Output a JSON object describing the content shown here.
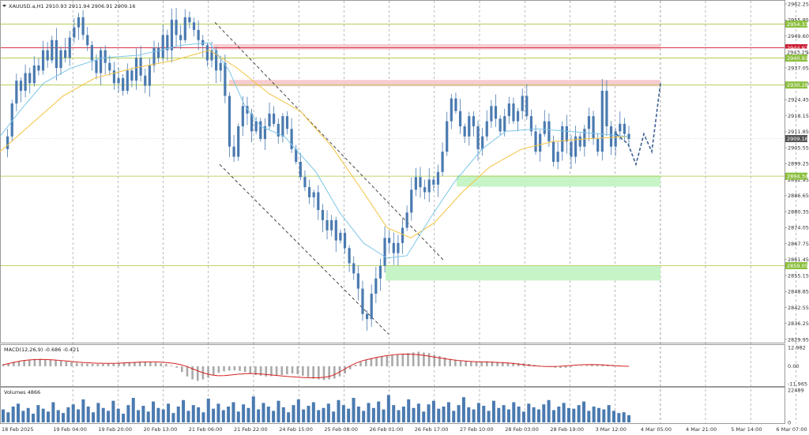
{
  "header": {
    "symbol_line": "XAUUSD.a,H1  2910.93 2911.94 2906.91 2909.16"
  },
  "colors": {
    "candle": "#4a7ab0",
    "ma_fast": "#7cc6e8",
    "ma_slow": "#f3c23f",
    "green_line": "#a8c93b",
    "red_line": "#d9344a",
    "resistance_zone": "#f7c9cf",
    "support_zone": "#c4f3c4",
    "macd_hist": "#a9a9a9",
    "macd_signal": "#d62020",
    "volume_bar": "#4a7ab0",
    "badge_green": "#8cbf3f",
    "badge_red": "#cc1d34",
    "badge_gray": "#555555"
  },
  "chart_data": {
    "type": "candlestick",
    "symbol": "XAUUSD.a",
    "timeframe": "H1",
    "ohlc_current": {
      "open": 2910.93,
      "high": 2911.94,
      "low": 2906.91,
      "close": 2909.16
    },
    "price_axis": {
      "range": [
        2829.95,
        2962.25
      ],
      "ticks": [
        "2962.25",
        "2955.95",
        "2949.60",
        "2943.25",
        "2937.05",
        "2930.70",
        "2924.45",
        "2918.15",
        "2911.85",
        "2905.55",
        "2899.25",
        "2892.95",
        "2886.65",
        "2880.35",
        "2874.05",
        "2867.75",
        "2861.45",
        "2855.15",
        "2848.85",
        "2842.55",
        "2836.25",
        "2829.95"
      ]
    },
    "time_axis": {
      "ticks": [
        "18 Feb 2025",
        "19 Feb 04:00",
        "19 Feb 20:00",
        "20 Feb 13:00",
        "21 Feb 06:00",
        "21 Feb 22:00",
        "24 Feb 15:00",
        "25 Feb 08:00",
        "26 Feb 01:00",
        "26 Feb 17:00",
        "27 Feb 10:00",
        "28 Feb 03:00",
        "28 Feb 19:00",
        "3 Mar 12:00",
        "4 Mar 05:00",
        "4 Mar 21:00",
        "5 Mar 14:00",
        "6 Mar 07:00",
        "6 Mar 23:00",
        "7 Mar 16:00"
      ]
    },
    "levels": [
      {
        "price": 2954.33,
        "label": "2954.33",
        "kind": "green"
      },
      {
        "price": 2944.97,
        "label": "2944.97",
        "kind": "red"
      },
      {
        "price": 2943.25,
        "label": "2943.25",
        "kind": "gray"
      },
      {
        "price": 2940.91,
        "label": "2940.91",
        "kind": "green"
      },
      {
        "price": 2930.28,
        "label": "2930.28",
        "kind": "green"
      },
      {
        "price": 2909.16,
        "label": "2909.16",
        "kind": "current"
      },
      {
        "price": 2894.34,
        "label": "2894.34",
        "kind": "green"
      },
      {
        "price": 2859.05,
        "label": "2859.05",
        "kind": "green"
      }
    ],
    "zones": [
      {
        "from": 2944.3,
        "to": 2946.4,
        "kind": "resistance"
      },
      {
        "from": 2929.8,
        "to": 2932.3,
        "kind": "resistance"
      },
      {
        "from": 2890.2,
        "to": 2894.6,
        "kind": "support"
      },
      {
        "from": 2853.2,
        "to": 2859.0,
        "kind": "support"
      }
    ],
    "candle_path": [
      2905,
      2910,
      2923,
      2932,
      2928,
      2935,
      2931,
      2938,
      2936,
      2944,
      2940,
      2948,
      2937,
      2944,
      2941,
      2949,
      2953,
      2957,
      2950,
      2946,
      2940,
      2935,
      2944,
      2939,
      2936,
      2931,
      2933,
      2928,
      2936,
      2932,
      2941,
      2934,
      2930,
      2938,
      2945,
      2941,
      2950,
      2944,
      2956,
      2950,
      2948,
      2957,
      2955,
      2952,
      2948,
      2946,
      2940,
      2944,
      2936,
      2939,
      2926,
      2906,
      2902,
      2914,
      2922,
      2919,
      2912,
      2916,
      2909,
      2914,
      2919,
      2915,
      2910,
      2918,
      2913,
      2905,
      2900,
      2894,
      2890,
      2886,
      2888,
      2881,
      2877,
      2873,
      2877,
      2869,
      2872,
      2866,
      2860,
      2856,
      2850,
      2840,
      2838,
      2848,
      2854,
      2859,
      2870,
      2868,
      2864,
      2868,
      2874,
      2880,
      2889,
      2894,
      2890,
      2888,
      2893,
      2891,
      2896,
      2904,
      2916,
      2925,
      2920,
      2914,
      2910,
      2918,
      2914,
      2905,
      2910,
      2916,
      2922,
      2917,
      2912,
      2918,
      2923,
      2916,
      2920,
      2926,
      2918,
      2912,
      2904,
      2911,
      2916,
      2908,
      2900,
      2904,
      2914,
      2908,
      2902,
      2910,
      2906,
      2913,
      2918,
      2909,
      2904,
      2928,
      2914,
      2906,
      2912,
      2915,
      2911,
      2909
    ],
    "ma_fast_points": [
      [
        0,
        2910
      ],
      [
        25,
        2920
      ],
      [
        55,
        2931
      ],
      [
        90,
        2937
      ],
      [
        130,
        2941
      ],
      [
        175,
        2942
      ],
      [
        230,
        2946
      ],
      [
        265,
        2947
      ],
      [
        290,
        2936
      ],
      [
        310,
        2922
      ],
      [
        330,
        2914
      ],
      [
        360,
        2910
      ],
      [
        400,
        2896
      ],
      [
        430,
        2880
      ],
      [
        460,
        2868
      ],
      [
        490,
        2862
      ],
      [
        515,
        2863
      ],
      [
        545,
        2878
      ],
      [
        575,
        2892
      ],
      [
        610,
        2905
      ],
      [
        640,
        2912
      ],
      [
        680,
        2913
      ],
      [
        720,
        2912
      ],
      [
        760,
        2911
      ],
      [
        795,
        2910
      ]
    ],
    "ma_slow_points": [
      [
        0,
        2904
      ],
      [
        40,
        2915
      ],
      [
        80,
        2926
      ],
      [
        120,
        2933
      ],
      [
        170,
        2937
      ],
      [
        220,
        2940
      ],
      [
        265,
        2944
      ],
      [
        300,
        2937
      ],
      [
        340,
        2927
      ],
      [
        380,
        2920
      ],
      [
        420,
        2906
      ],
      [
        460,
        2888
      ],
      [
        490,
        2874
      ],
      [
        520,
        2870
      ],
      [
        550,
        2876
      ],
      [
        585,
        2888
      ],
      [
        620,
        2898
      ],
      [
        660,
        2905
      ],
      [
        700,
        2908
      ],
      [
        740,
        2909
      ],
      [
        795,
        2910
      ]
    ],
    "trend_channel": {
      "upper": [
        [
          272,
          2955
        ],
        [
          562,
          2861
        ]
      ],
      "lower": [
        [
          278,
          2899
        ],
        [
          492,
          2832
        ]
      ]
    },
    "forecast_path": [
      [
        780,
        2911
      ],
      [
        795,
        2907
      ],
      [
        805,
        2899
      ],
      [
        815,
        2911
      ],
      [
        825,
        2904
      ],
      [
        836,
        2931
      ]
    ],
    "macd": {
      "label": "MACD(12,26,9) -0.686 -0.421",
      "axis": [
        "12.982",
        "0.00",
        "-11.965"
      ],
      "range": [
        -11.965,
        12.982
      ],
      "histogram": [
        1.5,
        2,
        3,
        3.5,
        4,
        4.5,
        5,
        5,
        4.8,
        4.5,
        4.2,
        3.8,
        3.2,
        2.8,
        2.3,
        2,
        1.8,
        1.6,
        1.5,
        1.6,
        1.8,
        2,
        2.3,
        2.5,
        2.8,
        3,
        3.2,
        3.1,
        2.8,
        2.5,
        2,
        1.5,
        0.5,
        -1,
        -4,
        -7,
        -9,
        -10,
        -9,
        -8,
        -6,
        -4.5,
        -3.5,
        -3,
        -2.8,
        -3.2,
        -4,
        -5,
        -6,
        -6.5,
        -7,
        -6.8,
        -6.5,
        -6,
        -5.5,
        -5,
        -5.5,
        -6.5,
        -7.5,
        -8.5,
        -9,
        -9.5,
        -9,
        -8.5,
        -7,
        -5,
        -2,
        1,
        3,
        4.5,
        5.5,
        6,
        6.5,
        7,
        7.5,
        8,
        8.5,
        9,
        9.5,
        10,
        9.5,
        9,
        8,
        7,
        6,
        5,
        4.5,
        4,
        3.5,
        3.2,
        3,
        3.2,
        3.4,
        3.2,
        3,
        2.8,
        2.6,
        2.4,
        2.2,
        2,
        1.6,
        1,
        0.5,
        0,
        -0.5,
        -1,
        -1.2,
        -1,
        -0.6,
        -0.2,
        0.3,
        0.6,
        1,
        1.2,
        1.3,
        1.1,
        0.9,
        0.6,
        0.3,
        0
      ],
      "signal": [
        1,
        2,
        3,
        3.8,
        4.3,
        4.6,
        4.7,
        4.6,
        4.4,
        4,
        3.6,
        3.2,
        2.8,
        2.5,
        2.3,
        2.1,
        2,
        2,
        2.1,
        2.3,
        2.5,
        2.7,
        2.9,
        3,
        3,
        2.8,
        2.5,
        2,
        1.2,
        0,
        -1.8,
        -3.5,
        -5,
        -6,
        -6.5,
        -6.4,
        -6,
        -5.5,
        -5.2,
        -5,
        -5.1,
        -5.4,
        -5.8,
        -6.2,
        -6.6,
        -7,
        -7.3,
        -7.6,
        -7.8,
        -7.9,
        -7.8,
        -7.5,
        -6.5,
        -4.5,
        -2,
        0.5,
        2.5,
        4,
        5,
        6,
        6.8,
        7.5,
        8,
        8.3,
        8.4,
        8.2,
        7.8,
        7.2,
        6.5,
        5.8,
        5.1,
        4.5,
        4,
        3.6,
        3.3,
        3.1,
        3,
        2.9,
        2.7,
        2.5,
        2.2,
        1.8,
        1.3,
        0.8,
        0.3,
        0,
        -0.2,
        -0.2,
        0,
        0.3,
        0.6,
        0.9,
        1.1,
        1.2,
        1.1,
        0.9,
        0.6,
        0.3,
        0.1,
        0
      ]
    },
    "volume": {
      "label": "Volumes 4866",
      "axis": [
        "22489",
        "0"
      ],
      "max": 22489,
      "values": [
        9000,
        7000,
        11000,
        13000,
        8000,
        10000,
        6000,
        12000,
        9500,
        7500,
        14000,
        8500,
        6500,
        10500,
        12500,
        9000,
        16000,
        11000,
        7000,
        13500,
        10000,
        8000,
        15000,
        9500,
        6000,
        12000,
        17000,
        8500,
        11500,
        7500,
        14500,
        10000,
        9000,
        13000,
        6500,
        11000,
        15500,
        8000,
        12000,
        10500,
        7000,
        16500,
        9500,
        13000,
        8500,
        11000,
        14000,
        7500,
        12500,
        10000,
        18000,
        9000,
        13500,
        11000,
        8000,
        15000,
        10500,
        7000,
        12000,
        16000,
        9000,
        11500,
        14000,
        8500,
        10000,
        13000,
        7500,
        15500,
        12000,
        9500,
        17000,
        11000,
        8000,
        13500,
        10000,
        14500,
        9000,
        19000,
        12000,
        8500,
        11000,
        16000,
        10000,
        13000,
        7500,
        12500,
        15000,
        9500,
        11000,
        14000,
        8000,
        12000,
        17500,
        10500,
        9000,
        13500,
        11500,
        8000,
        15000,
        10000,
        12000,
        9000,
        14000,
        11000,
        7500,
        13000,
        10500,
        9000,
        12500,
        15500,
        8500,
        11000,
        13500,
        10000,
        9500,
        12000,
        14500,
        8000,
        11000,
        10000,
        9000,
        12000,
        8000,
        6500,
        7000,
        5000
      ]
    }
  }
}
